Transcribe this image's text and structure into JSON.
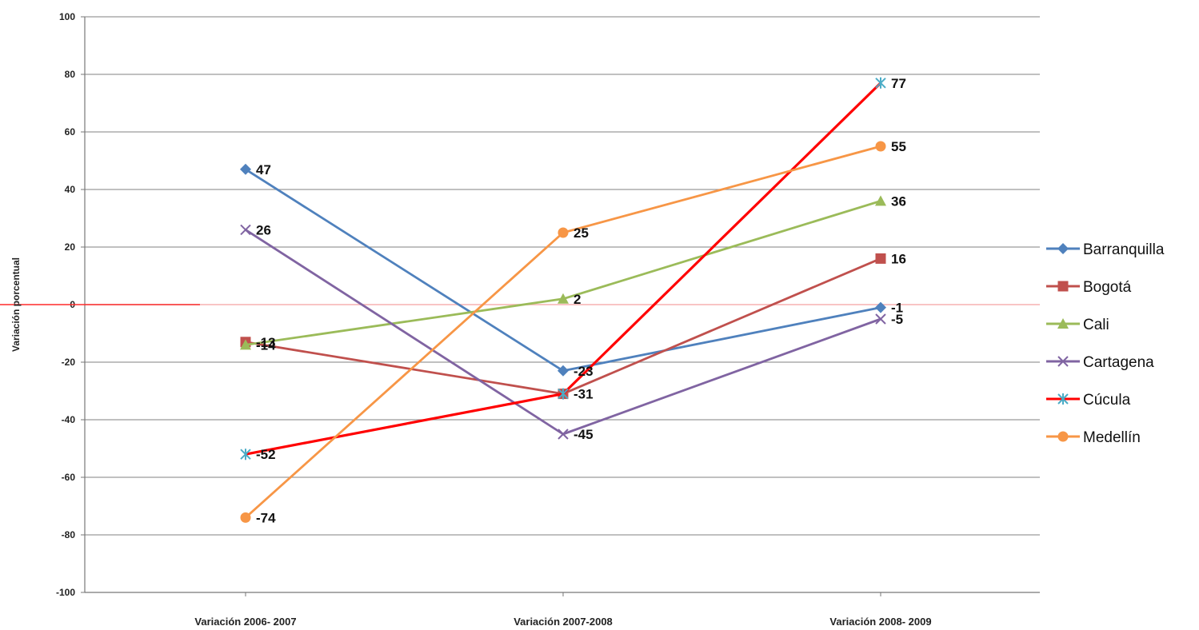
{
  "chart_data": {
    "type": "line",
    "title": "",
    "xlabel": "",
    "ylabel": "Variación porcentual",
    "ylim": [
      -100,
      100
    ],
    "yticks": [
      100,
      80,
      60,
      40,
      20,
      0,
      -20,
      -40,
      -60,
      -80,
      -100
    ],
    "ytick_labels": [
      "100",
      "80",
      "60",
      "40",
      "20",
      "0",
      "-20",
      "-40",
      "-60",
      "-80",
      "-100"
    ],
    "grid": true,
    "legend_position": "right",
    "categories": [
      "Variación 2006- 2007",
      "Variación 2007-2008",
      "Variación 2008- 2009"
    ],
    "series": [
      {
        "name": "Barranquilla",
        "color": "#4f81bd",
        "marker": "diamond",
        "values": [
          47,
          -23,
          -1
        ],
        "labels": [
          "47",
          "-23",
          "-1"
        ]
      },
      {
        "name": "Bogotá",
        "color": "#c0504d",
        "marker": "square",
        "values": [
          -13,
          -31,
          16
        ],
        "labels": [
          "-13",
          "-31",
          "16"
        ]
      },
      {
        "name": "Cali",
        "color": "#9bbb59",
        "marker": "triangle",
        "values": [
          -14,
          2,
          36
        ],
        "labels": [
          "-14",
          "2",
          "36"
        ]
      },
      {
        "name": "Cartagena",
        "color": "#8064a2",
        "marker": "x",
        "values": [
          26,
          -45,
          -5
        ],
        "labels": [
          "26",
          "-45",
          "-5"
        ]
      },
      {
        "name": "Cúcula",
        "color": "#ff0000",
        "marker": "star",
        "values": [
          -52,
          -31,
          77
        ],
        "labels": [
          "-52",
          "",
          "77"
        ]
      },
      {
        "name": "Medellín",
        "color": "#f79646",
        "marker": "circle",
        "values": [
          -74,
          25,
          55
        ],
        "labels": [
          "-74",
          "25",
          "55"
        ]
      }
    ]
  }
}
